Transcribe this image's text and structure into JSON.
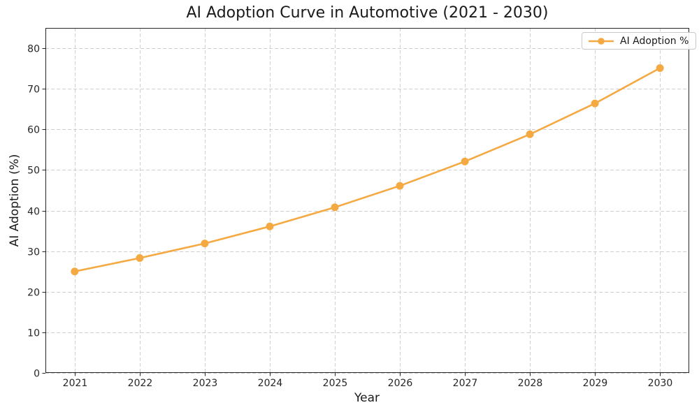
{
  "chart_data": {
    "type": "line",
    "title": "AI Adoption Curve in Automotive (2021 - 2030)",
    "xlabel": "Year",
    "ylabel": "AI Adoption (%)",
    "x": [
      2021,
      2022,
      2023,
      2024,
      2025,
      2026,
      2027,
      2028,
      2029,
      2030
    ],
    "series": [
      {
        "name": "AI Adoption %",
        "values": [
          25.0,
          28.3,
          31.9,
          36.1,
          40.8,
          46.1,
          52.1,
          58.8,
          66.4,
          75.1
        ],
        "color": "#F5A942",
        "marker": "circle",
        "line_style": "solid"
      }
    ],
    "xlim": [
      2020.55,
      2030.45
    ],
    "ylim": [
      0,
      85
    ],
    "yticks": [
      0,
      10,
      20,
      30,
      40,
      50,
      60,
      70,
      80
    ],
    "grid": true,
    "grid_style": "dashed",
    "grid_color": "#cfcfcf",
    "axis_color": "#262626",
    "background_color": "#ffffff",
    "legend": {
      "position": "upper right",
      "label": "AI Adoption %"
    }
  }
}
